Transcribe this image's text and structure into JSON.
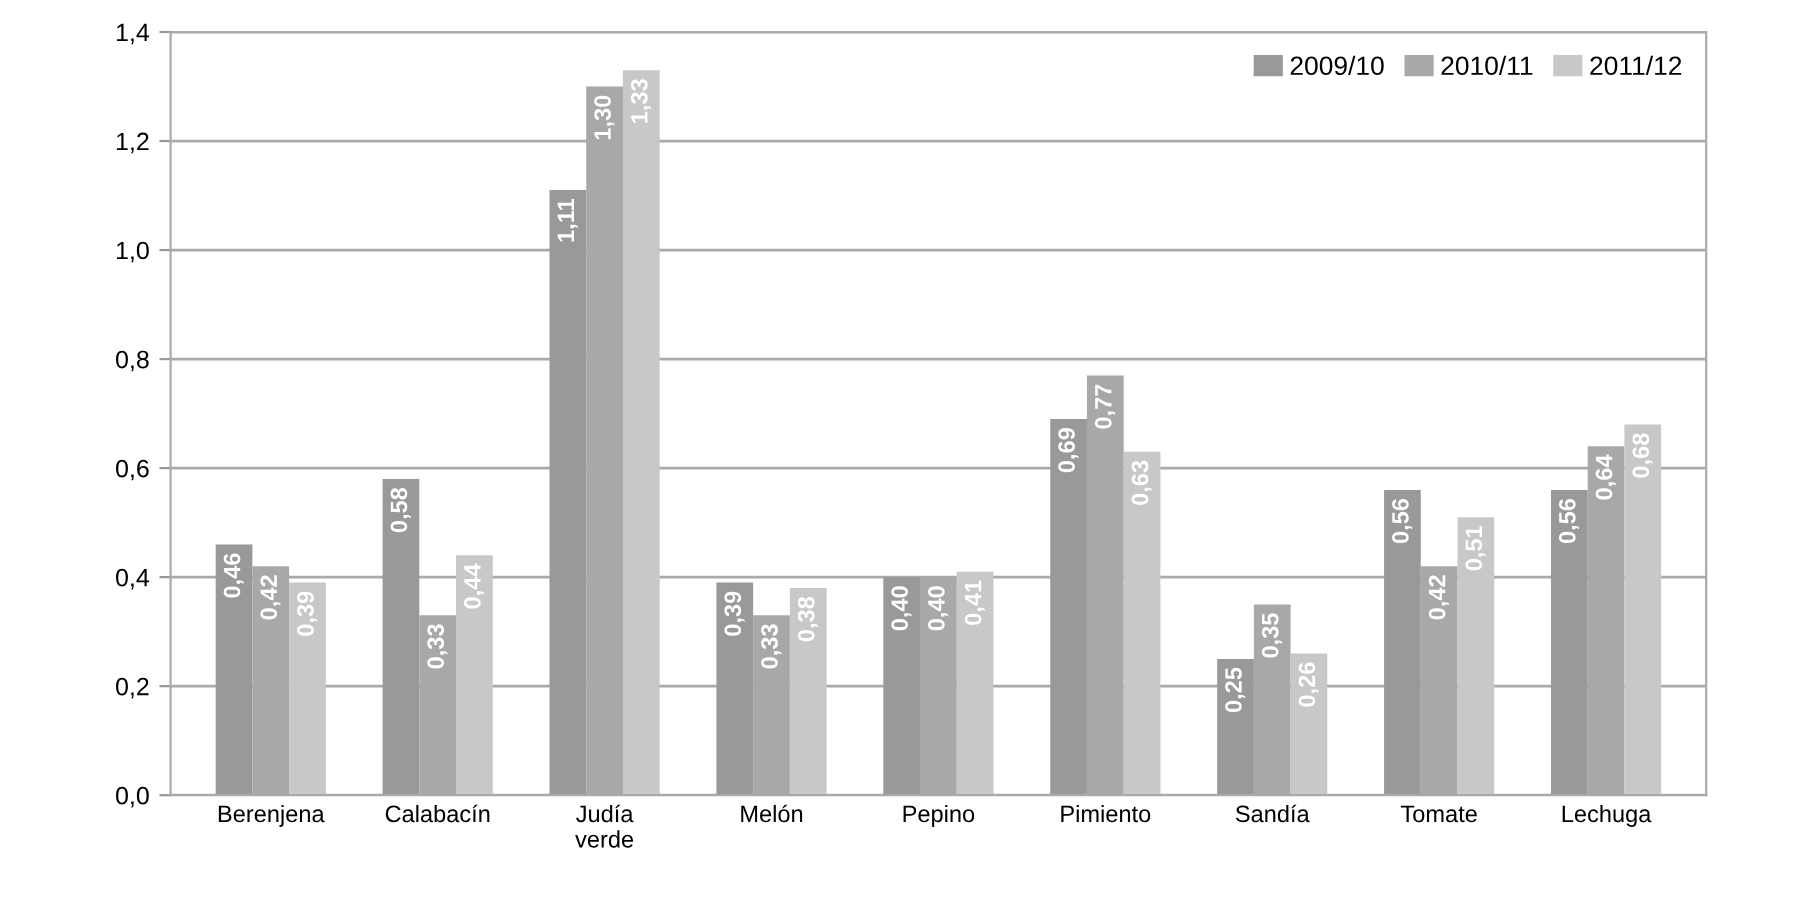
{
  "chart_data": {
    "type": "bar",
    "categories": [
      "Berenjena",
      "Calabacín",
      "Judía\nverde",
      "Melón",
      "Pepino",
      "Pimiento",
      "Sandía",
      "Tomate",
      "Lechuga"
    ],
    "series": [
      {
        "name": "2009/10",
        "color": "#999999",
        "values": [
          0.46,
          0.58,
          1.11,
          0.39,
          0.4,
          0.69,
          0.25,
          0.56,
          0.56
        ],
        "value_labels": [
          "0,46",
          "0,58",
          "1,11",
          "0,39",
          "0,40",
          "0,69",
          "0,25",
          "0,56",
          "0,56"
        ]
      },
      {
        "name": "2010/11",
        "color": "#a8a8a8",
        "values": [
          0.42,
          0.33,
          1.3,
          0.33,
          0.4,
          0.77,
          0.35,
          0.42,
          0.64
        ],
        "value_labels": [
          "0,42",
          "0,33",
          "1,30",
          "0,33",
          "0,40",
          "0,77",
          "0,35",
          "0,42",
          "0,64"
        ]
      },
      {
        "name": "2011/12",
        "color": "#c8c8c8",
        "values": [
          0.39,
          0.44,
          1.33,
          0.38,
          0.41,
          0.63,
          0.26,
          0.51,
          0.68
        ],
        "value_labels": [
          "0,39",
          "0,44",
          "1,33",
          "0,38",
          "0,41",
          "0,63",
          "0,26",
          "0,51",
          "0,68"
        ]
      }
    ],
    "ylim": [
      0,
      1.4
    ],
    "yticks": [
      {
        "value": 0,
        "label": "0,0"
      },
      {
        "value": 0.2,
        "label": "0,2"
      },
      {
        "value": 0.4,
        "label": "0,4"
      },
      {
        "value": 0.6,
        "label": "0,6"
      },
      {
        "value": 0.8,
        "label": "0,8"
      },
      {
        "value": 1.0,
        "label": "1,0"
      },
      {
        "value": 1.2,
        "label": "1,2"
      },
      {
        "value": 1.4,
        "label": "1,4"
      }
    ],
    "grid": "y",
    "legend": "top right"
  }
}
